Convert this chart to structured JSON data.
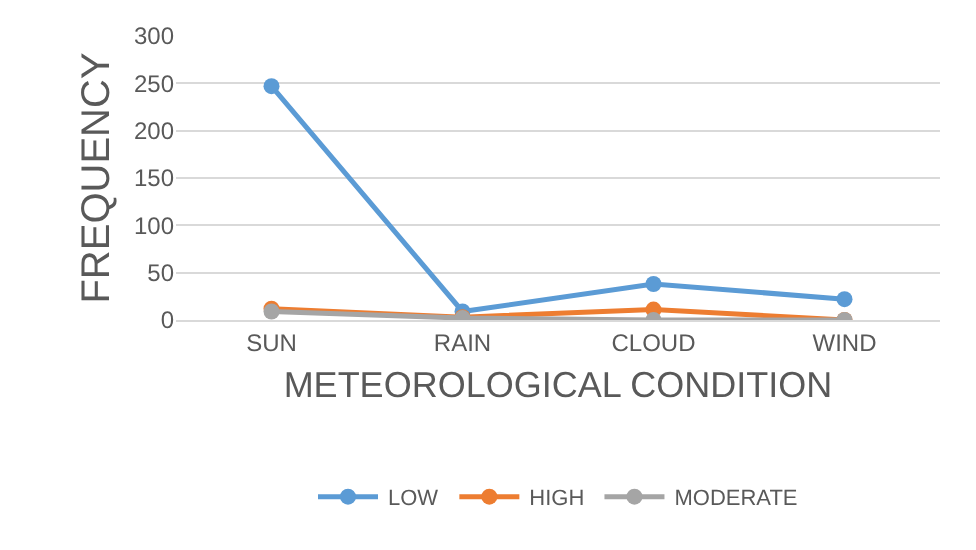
{
  "chart_data": {
    "type": "line",
    "xlabel": "METEOROLOGICAL CONDITION",
    "ylabel": "FREQUENCY",
    "categories": [
      "SUN",
      "RAIN",
      "CLOUD",
      "WIND"
    ],
    "series": [
      {
        "name": "LOW",
        "color": "#5b9bd5",
        "values": [
          247,
          9,
          38,
          22
        ]
      },
      {
        "name": "HIGH",
        "color": "#ed7d31",
        "values": [
          12,
          3,
          11,
          0
        ]
      },
      {
        "name": "MODERATE",
        "color": "#a5a5a5",
        "values": [
          9,
          2,
          0,
          0
        ]
      }
    ],
    "ylim": [
      0,
      300
    ],
    "yticks": [
      0,
      50,
      100,
      150,
      200,
      250,
      300
    ],
    "grid": "y",
    "legend": "bottom",
    "marker": "circle",
    "line_style": "solid"
  }
}
